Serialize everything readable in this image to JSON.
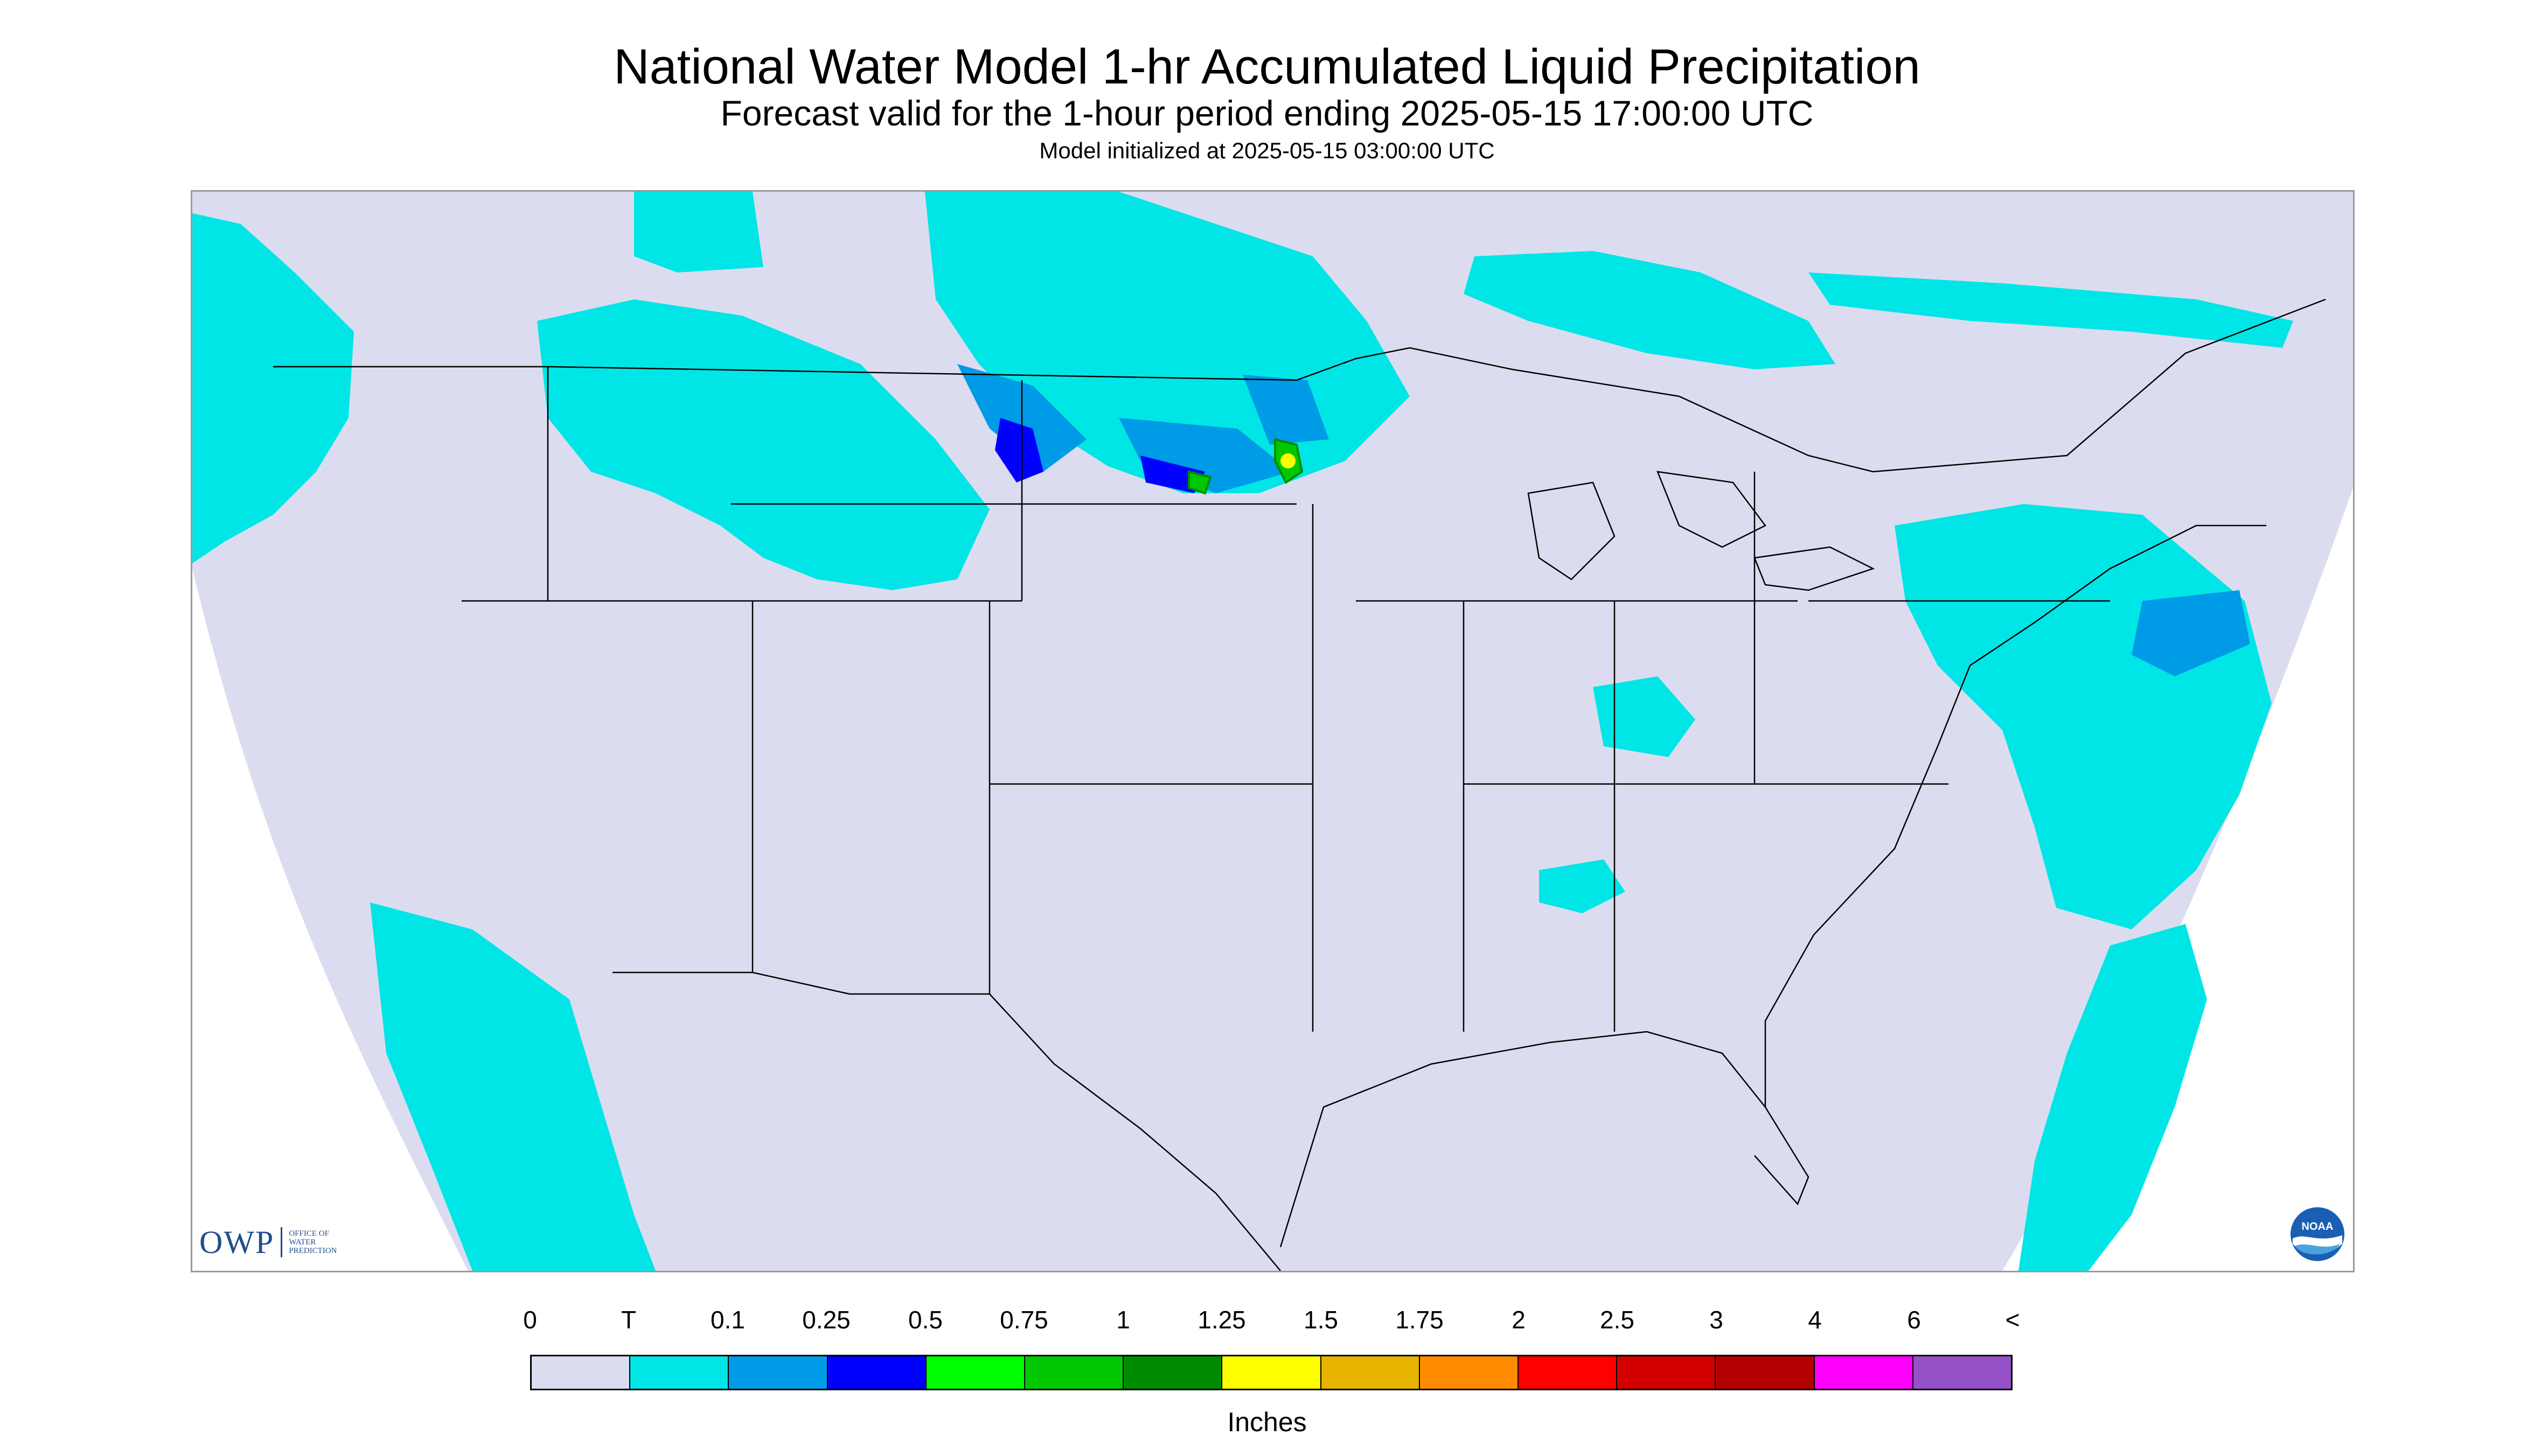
{
  "header": {
    "title": "National Water Model 1-hr Accumulated Liquid Precipitation",
    "subtitle": "Forecast valid for the 1-hour period ending 2025-05-15 17:00:00 UTC",
    "init": "Model initialized at 2025-05-15 03:00:00 UTC"
  },
  "logos": {
    "owp_mark": "OWP",
    "owp_text": [
      "OFFICE OF",
      "WATER",
      "PREDICTION"
    ],
    "noaa": "NOAA"
  },
  "legend": {
    "units": "Inches",
    "labels": [
      "0",
      "T",
      "0.1",
      "0.25",
      "0.5",
      "0.75",
      "1",
      "1.25",
      "1.5",
      "1.75",
      "2",
      "2.5",
      "3",
      "4",
      "6",
      "<"
    ],
    "colors": [
      "#dcdcf0",
      "#00e6e6",
      "#009be6",
      "#0000ff",
      "#00ff00",
      "#00c800",
      "#008c00",
      "#ffff00",
      "#e6b400",
      "#ff8c00",
      "#ff0000",
      "#d20000",
      "#b40000",
      "#ff00ff",
      "#9650c8"
    ]
  },
  "map": {
    "background_color": "#dcdcf0",
    "boundary_color": "#000000",
    "precip_regions": [
      {
        "area": "Pacific Northwest coast",
        "level": "T"
      },
      {
        "area": "Northern Rockies / Montana / Wyoming",
        "level": "T"
      },
      {
        "area": "North Dakota / South Dakota / Minnesota band",
        "level": "0.1 - 1"
      },
      {
        "area": "Upper Great Lakes / Ontario",
        "level": "T"
      },
      {
        "area": "Northeast / New England / Atlantic",
        "level": "T - 0.25"
      },
      {
        "area": "Pacific off California / Baja",
        "level": "T"
      },
      {
        "area": "Ohio Valley / Alabama",
        "level": "T"
      }
    ]
  }
}
